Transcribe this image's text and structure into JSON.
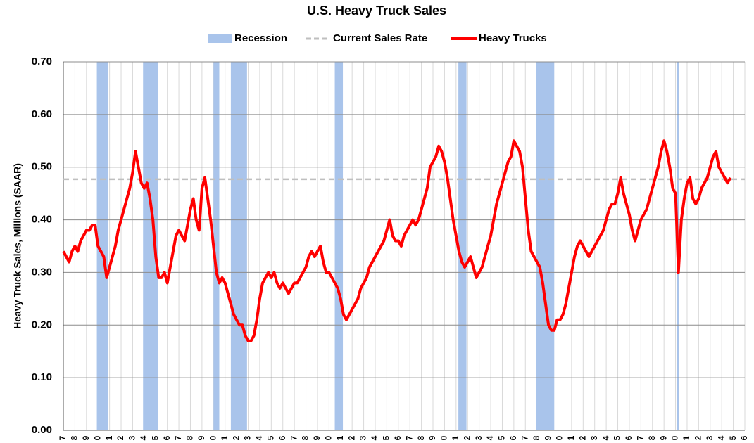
{
  "chart_data": {
    "type": "line",
    "title": "U.S. Heavy Truck Sales",
    "ylabel": "Heavy Truck Sales, Millions (SAAR)",
    "ylim": [
      0,
      0.7
    ],
    "yticks": [
      {
        "value": 0,
        "label": "0.00"
      },
      {
        "value": 0.1,
        "label": "0.10"
      },
      {
        "value": 0.2,
        "label": "0.20"
      },
      {
        "value": 0.3,
        "label": "0.30"
      },
      {
        "value": 0.4,
        "label": "0.40"
      },
      {
        "value": 0.5,
        "label": "0.50"
      },
      {
        "value": 0.6,
        "label": "0.60"
      },
      {
        "value": 0.7,
        "label": "0.70"
      }
    ],
    "xlim": [
      0,
      59
    ],
    "xticks": [
      {
        "value": 0,
        "label": "7"
      },
      {
        "value": 1,
        "label": "8"
      },
      {
        "value": 2,
        "label": "9"
      },
      {
        "value": 3,
        "label": "0"
      },
      {
        "value": 4,
        "label": "1"
      },
      {
        "value": 5,
        "label": "2"
      },
      {
        "value": 6,
        "label": "3"
      },
      {
        "value": 7,
        "label": "4"
      },
      {
        "value": 8,
        "label": "5"
      },
      {
        "value": 9,
        "label": "6"
      },
      {
        "value": 10,
        "label": "7"
      },
      {
        "value": 11,
        "label": "8"
      },
      {
        "value": 12,
        "label": "9"
      },
      {
        "value": 13,
        "label": "0"
      },
      {
        "value": 14,
        "label": "1"
      },
      {
        "value": 15,
        "label": "2"
      },
      {
        "value": 16,
        "label": "3"
      },
      {
        "value": 17,
        "label": "4"
      },
      {
        "value": 18,
        "label": "5"
      },
      {
        "value": 19,
        "label": "6"
      },
      {
        "value": 20,
        "label": "7"
      },
      {
        "value": 21,
        "label": "8"
      },
      {
        "value": 22,
        "label": "9"
      },
      {
        "value": 23,
        "label": "0"
      },
      {
        "value": 24,
        "label": "1"
      },
      {
        "value": 25,
        "label": "2"
      },
      {
        "value": 26,
        "label": "3"
      },
      {
        "value": 27,
        "label": "4"
      },
      {
        "value": 28,
        "label": "5"
      },
      {
        "value": 29,
        "label": "6"
      },
      {
        "value": 30,
        "label": "7"
      },
      {
        "value": 31,
        "label": "8"
      },
      {
        "value": 32,
        "label": "9"
      },
      {
        "value": 33,
        "label": "0"
      },
      {
        "value": 34,
        "label": "1"
      },
      {
        "value": 35,
        "label": "2"
      },
      {
        "value": 36,
        "label": "3"
      },
      {
        "value": 37,
        "label": "4"
      },
      {
        "value": 38,
        "label": "5"
      },
      {
        "value": 39,
        "label": "6"
      },
      {
        "value": 40,
        "label": "7"
      },
      {
        "value": 41,
        "label": "8"
      },
      {
        "value": 42,
        "label": "9"
      },
      {
        "value": 43,
        "label": "0"
      },
      {
        "value": 44,
        "label": "1"
      },
      {
        "value": 45,
        "label": "2"
      },
      {
        "value": 46,
        "label": "3"
      },
      {
        "value": 47,
        "label": "4"
      },
      {
        "value": 48,
        "label": "5"
      },
      {
        "value": 49,
        "label": "6"
      },
      {
        "value": 50,
        "label": "7"
      },
      {
        "value": 51,
        "label": "8"
      },
      {
        "value": 52,
        "label": "9"
      },
      {
        "value": 53,
        "label": "0"
      },
      {
        "value": 54,
        "label": "1"
      },
      {
        "value": 55,
        "label": "2"
      },
      {
        "value": 56,
        "label": "3"
      },
      {
        "value": 57,
        "label": "4"
      },
      {
        "value": 58,
        "label": "5"
      },
      {
        "value": 59,
        "label": "6"
      }
    ],
    "grid": true,
    "recessions": {
      "name": "Recession",
      "color": "#a9c4eb",
      "spans": [
        [
          2.9,
          3.9
        ],
        [
          6.9,
          8.2
        ],
        [
          13,
          13.5
        ],
        [
          14.5,
          15.9
        ],
        [
          23.5,
          24.2
        ],
        [
          34.2,
          34.9
        ],
        [
          40.9,
          42.5
        ],
        [
          53.1,
          53.3
        ]
      ]
    },
    "reference_line": {
      "name": "Current Sales Rate",
      "value": 0.477,
      "color": "#bfbfbf"
    },
    "series": [
      {
        "name": "Heavy Trucks",
        "color": "#ff0000",
        "x": [
          0,
          0.25,
          0.5,
          0.75,
          1,
          1.25,
          1.5,
          1.75,
          2,
          2.25,
          2.5,
          2.75,
          3,
          3.25,
          3.5,
          3.75,
          4,
          4.25,
          4.5,
          4.75,
          5,
          5.25,
          5.5,
          5.75,
          6,
          6.25,
          6.5,
          6.75,
          7,
          7.25,
          7.5,
          7.75,
          8,
          8.25,
          8.5,
          8.75,
          9,
          9.25,
          9.5,
          9.75,
          10,
          10.25,
          10.5,
          10.75,
          11,
          11.25,
          11.5,
          11.75,
          12,
          12.25,
          12.5,
          12.75,
          13,
          13.25,
          13.5,
          13.75,
          14,
          14.25,
          14.5,
          14.75,
          15,
          15.25,
          15.5,
          15.75,
          16,
          16.25,
          16.5,
          16.75,
          17,
          17.25,
          17.5,
          17.75,
          18,
          18.25,
          18.5,
          18.75,
          19,
          19.25,
          19.5,
          19.75,
          20,
          20.25,
          20.5,
          20.75,
          21,
          21.25,
          21.5,
          21.75,
          22,
          22.25,
          22.5,
          22.75,
          23,
          23.25,
          23.5,
          23.75,
          24,
          24.25,
          24.5,
          24.75,
          25,
          25.25,
          25.5,
          25.75,
          26,
          26.25,
          26.5,
          26.75,
          27,
          27.25,
          27.5,
          27.75,
          28,
          28.25,
          28.5,
          28.75,
          29,
          29.25,
          29.5,
          29.75,
          30,
          30.25,
          30.5,
          30.75,
          31,
          31.25,
          31.5,
          31.75,
          32,
          32.25,
          32.5,
          32.75,
          33,
          33.25,
          33.5,
          33.75,
          34,
          34.25,
          34.5,
          34.75,
          35,
          35.25,
          35.5,
          35.75,
          36,
          36.25,
          36.5,
          36.75,
          37,
          37.25,
          37.5,
          37.75,
          38,
          38.25,
          38.5,
          38.75,
          39,
          39.25,
          39.5,
          39.75,
          40,
          40.25,
          40.5,
          40.75,
          41,
          41.25,
          41.5,
          41.75,
          42,
          42.25,
          42.5,
          42.75,
          43,
          43.25,
          43.5,
          43.75,
          44,
          44.25,
          44.5,
          44.75,
          45,
          45.25,
          45.5,
          45.75,
          46,
          46.25,
          46.5,
          46.75,
          47,
          47.25,
          47.5,
          47.75,
          48,
          48.25,
          48.5,
          48.75,
          49,
          49.25,
          49.5,
          49.75,
          50,
          50.25,
          50.5,
          50.75,
          51,
          51.25,
          51.5,
          51.75,
          52,
          52.25,
          52.5,
          52.75,
          53,
          53.25,
          53.5,
          53.75,
          54,
          54.25,
          54.5,
          54.75,
          55,
          55.25,
          55.5,
          55.75,
          56,
          56.25,
          56.5,
          56.75,
          57,
          57.25,
          57.5,
          57.75
        ],
        "values": [
          0.34,
          0.33,
          0.32,
          0.34,
          0.35,
          0.34,
          0.36,
          0.37,
          0.38,
          0.38,
          0.39,
          0.39,
          0.35,
          0.34,
          0.33,
          0.29,
          0.31,
          0.33,
          0.35,
          0.38,
          0.4,
          0.42,
          0.44,
          0.46,
          0.49,
          0.53,
          0.5,
          0.47,
          0.46,
          0.47,
          0.44,
          0.4,
          0.33,
          0.29,
          0.29,
          0.3,
          0.28,
          0.31,
          0.34,
          0.37,
          0.38,
          0.37,
          0.36,
          0.39,
          0.42,
          0.44,
          0.4,
          0.38,
          0.46,
          0.48,
          0.44,
          0.4,
          0.35,
          0.3,
          0.28,
          0.29,
          0.28,
          0.26,
          0.24,
          0.22,
          0.21,
          0.2,
          0.2,
          0.18,
          0.17,
          0.17,
          0.18,
          0.21,
          0.25,
          0.28,
          0.29,
          0.3,
          0.29,
          0.3,
          0.28,
          0.27,
          0.28,
          0.27,
          0.26,
          0.27,
          0.28,
          0.28,
          0.29,
          0.3,
          0.31,
          0.33,
          0.34,
          0.33,
          0.34,
          0.35,
          0.32,
          0.3,
          0.3,
          0.29,
          0.28,
          0.27,
          0.25,
          0.22,
          0.21,
          0.22,
          0.23,
          0.24,
          0.25,
          0.27,
          0.28,
          0.29,
          0.31,
          0.32,
          0.33,
          0.34,
          0.35,
          0.36,
          0.38,
          0.4,
          0.37,
          0.36,
          0.36,
          0.35,
          0.37,
          0.38,
          0.39,
          0.4,
          0.39,
          0.4,
          0.42,
          0.44,
          0.46,
          0.5,
          0.51,
          0.52,
          0.54,
          0.53,
          0.51,
          0.48,
          0.44,
          0.4,
          0.37,
          0.34,
          0.32,
          0.31,
          0.32,
          0.33,
          0.31,
          0.29,
          0.3,
          0.31,
          0.33,
          0.35,
          0.37,
          0.4,
          0.43,
          0.45,
          0.47,
          0.49,
          0.51,
          0.52,
          0.55,
          0.54,
          0.53,
          0.5,
          0.44,
          0.38,
          0.34,
          0.33,
          0.32,
          0.31,
          0.28,
          0.24,
          0.2,
          0.19,
          0.19,
          0.21,
          0.21,
          0.22,
          0.24,
          0.27,
          0.3,
          0.33,
          0.35,
          0.36,
          0.35,
          0.34,
          0.33,
          0.34,
          0.35,
          0.36,
          0.37,
          0.38,
          0.4,
          0.42,
          0.43,
          0.43,
          0.45,
          0.48,
          0.45,
          0.43,
          0.41,
          0.38,
          0.36,
          0.38,
          0.4,
          0.41,
          0.42,
          0.44,
          0.46,
          0.48,
          0.5,
          0.53,
          0.55,
          0.53,
          0.5,
          0.46,
          0.45,
          0.3,
          0.4,
          0.44,
          0.47,
          0.48,
          0.44,
          0.43,
          0.44,
          0.46,
          0.47,
          0.48,
          0.5,
          0.52,
          0.53,
          0.5,
          0.49,
          0.48,
          0.47,
          0.48
        ]
      }
    ]
  }
}
